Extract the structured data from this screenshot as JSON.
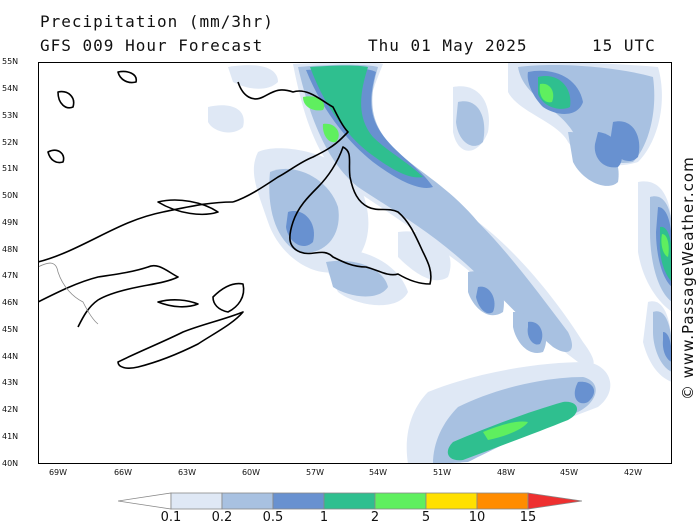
{
  "header": {
    "title": "Precipitation (mm/3hr)",
    "subtitle": "GFS 009 Hour Forecast",
    "date": "Thu 01 May 2025",
    "time": "15 UTC"
  },
  "credit": "© www.PassageWeather.com",
  "axes": {
    "lat_labels": [
      "55N",
      "54N",
      "53N",
      "52N",
      "51N",
      "50N",
      "49N",
      "48N",
      "47N",
      "46N",
      "45N",
      "44N",
      "43N",
      "42N",
      "41N",
      "40N"
    ],
    "lon_labels": [
      "69W",
      "66W",
      "63W",
      "60W",
      "57W",
      "54W",
      "51W",
      "48W",
      "45W",
      "42W"
    ]
  },
  "legend": {
    "labels": [
      "0.1",
      "0.2",
      "0.5",
      "1",
      "2",
      "5",
      "10",
      "15"
    ],
    "colors": [
      "#ffffff",
      "#dfe8f5",
      "#a8c1e1",
      "#6891d0",
      "#2fbf8f",
      "#5fef5f",
      "#ffe000",
      "#ff8c00",
      "#ee3030"
    ]
  },
  "colors": {
    "light": "#dfe8f5",
    "pale_blue": "#a8c1e1",
    "blue": "#6891d0",
    "teal": "#2fbf8f",
    "green": "#5fef5f"
  }
}
